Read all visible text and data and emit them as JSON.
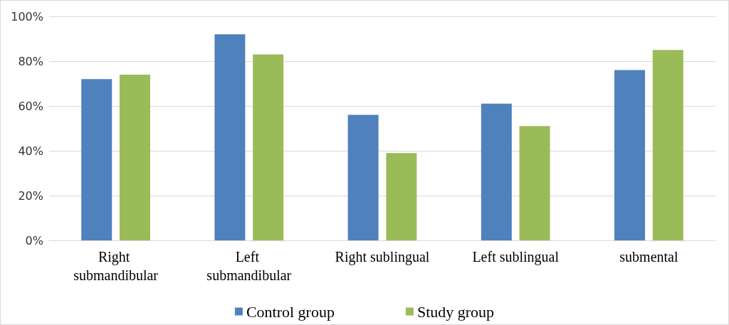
{
  "chart_data": {
    "type": "bar",
    "categories": [
      "Right submandibular",
      "Left submandibular",
      "Right sublingual",
      "Left sublingual",
      "submental"
    ],
    "series": [
      {
        "name": "Control group",
        "color": "#4f81bd",
        "values": [
          72,
          92,
          56,
          61,
          76
        ]
      },
      {
        "name": "Study group",
        "color": "#9bbb59",
        "values": [
          74,
          83,
          39,
          51,
          85
        ]
      }
    ],
    "ylim": [
      0,
      100
    ],
    "yticks": [
      {
        "value": 0,
        "label": "0%"
      },
      {
        "value": 20,
        "label": "20%"
      },
      {
        "value": 40,
        "label": "40%"
      },
      {
        "value": 60,
        "label": "60%"
      },
      {
        "value": 80,
        "label": "80%"
      },
      {
        "value": 100,
        "label": "100%"
      }
    ],
    "grid": "y",
    "legend": "bottom"
  }
}
